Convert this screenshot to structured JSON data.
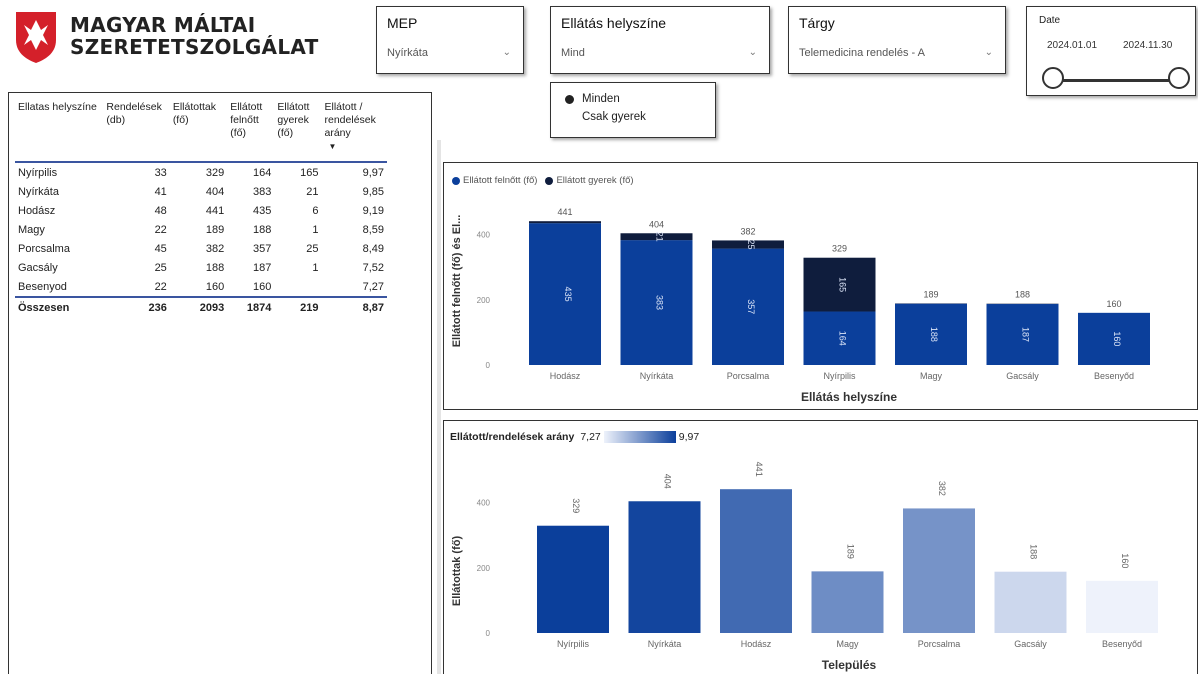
{
  "logo": {
    "line1": "MAGYAR MÁLTAI",
    "line2": "SZERETETSZOLGÁLAT"
  },
  "filters": {
    "mep": {
      "title": "MEP",
      "value": "Nyírkáta"
    },
    "location": {
      "title": "Ellátás helyszíne",
      "value": "Mind"
    },
    "subject": {
      "title": "Tárgy",
      "value": "Telemedicina rendelés - A"
    },
    "patient_type": {
      "options": [
        "Minden",
        "Csak gyerek"
      ],
      "selected": "Minden"
    },
    "date": {
      "title": "Date",
      "start": "2024.01.01",
      "end": "2024.11.30",
      "range_fraction": [
        0,
        1
      ]
    }
  },
  "table": {
    "headers": [
      "Ellatas helyszíne",
      "Rendelések (db)",
      "Ellátottak (fő)",
      "Ellátott felnőtt (fő)",
      "Ellátott gyerek (fő)",
      "Ellátott / rendelések arány"
    ],
    "rows": [
      [
        "Nyírpilis",
        "33",
        "329",
        "164",
        "165",
        "9,97"
      ],
      [
        "Nyírkáta",
        "41",
        "404",
        "383",
        "21",
        "9,85"
      ],
      [
        "Hodász",
        "48",
        "441",
        "435",
        "6",
        "9,19"
      ],
      [
        "Magy",
        "22",
        "189",
        "188",
        "1",
        "8,59"
      ],
      [
        "Porcsalma",
        "45",
        "382",
        "357",
        "25",
        "8,49"
      ],
      [
        "Gacsály",
        "25",
        "188",
        "187",
        "1",
        "7,52"
      ],
      [
        "Besenyod",
        "22",
        "160",
        "160",
        "",
        "7,27"
      ]
    ],
    "total": [
      "Összesen",
      "236",
      "2093",
      "1874",
      "219",
      "8,87"
    ]
  },
  "chart_data": [
    {
      "type": "bar",
      "stacked": true,
      "legend": [
        "Ellátott felnőtt (fő)",
        "Ellátott gyerek (fő)"
      ],
      "xlabel": "Ellátás helyszíne",
      "ylabel": "Ellátott felnőtt (fő) és El...",
      "categories": [
        "Hodász",
        "Nyírkáta",
        "Porcsalma",
        "Nyírpilis",
        "Magy",
        "Gacsály",
        "Besenyőd"
      ],
      "series": [
        {
          "name": "Ellátott felnőtt (fő)",
          "values": [
            435,
            383,
            357,
            164,
            188,
            187,
            160
          ],
          "color": "#0b3f9b"
        },
        {
          "name": "Ellátott gyerek (fő)",
          "values": [
            6,
            21,
            25,
            165,
            1,
            1,
            0
          ],
          "color": "#0f1d3d"
        }
      ],
      "totals": [
        "441",
        "404",
        "382",
        "329",
        "189",
        "188",
        "160"
      ],
      "yticks": [
        "0",
        "200",
        "400"
      ],
      "ylim": [
        0,
        460
      ]
    },
    {
      "type": "bar",
      "title": "Ellátott/rendelések arány",
      "gradient_min": "7,27",
      "gradient_max": "9,97",
      "xlabel": "Település",
      "ylabel": "Ellátottak (fő)",
      "categories": [
        "Nyírpilis",
        "Nyírkáta",
        "Hodász",
        "Magy",
        "Porcsalma",
        "Gacsály",
        "Besenyőd"
      ],
      "values": [
        329,
        404,
        441,
        189,
        382,
        188,
        160
      ],
      "labels": [
        "329",
        "404",
        "441",
        "189",
        "382",
        "188",
        "160"
      ],
      "ratio": [
        9.97,
        9.85,
        9.19,
        8.59,
        8.49,
        7.52,
        7.27
      ],
      "yticks": [
        "0",
        "200",
        "400"
      ],
      "ylim": [
        0,
        460
      ],
      "color_low": "#eef2fb",
      "color_high": "#0b3f9b"
    }
  ]
}
